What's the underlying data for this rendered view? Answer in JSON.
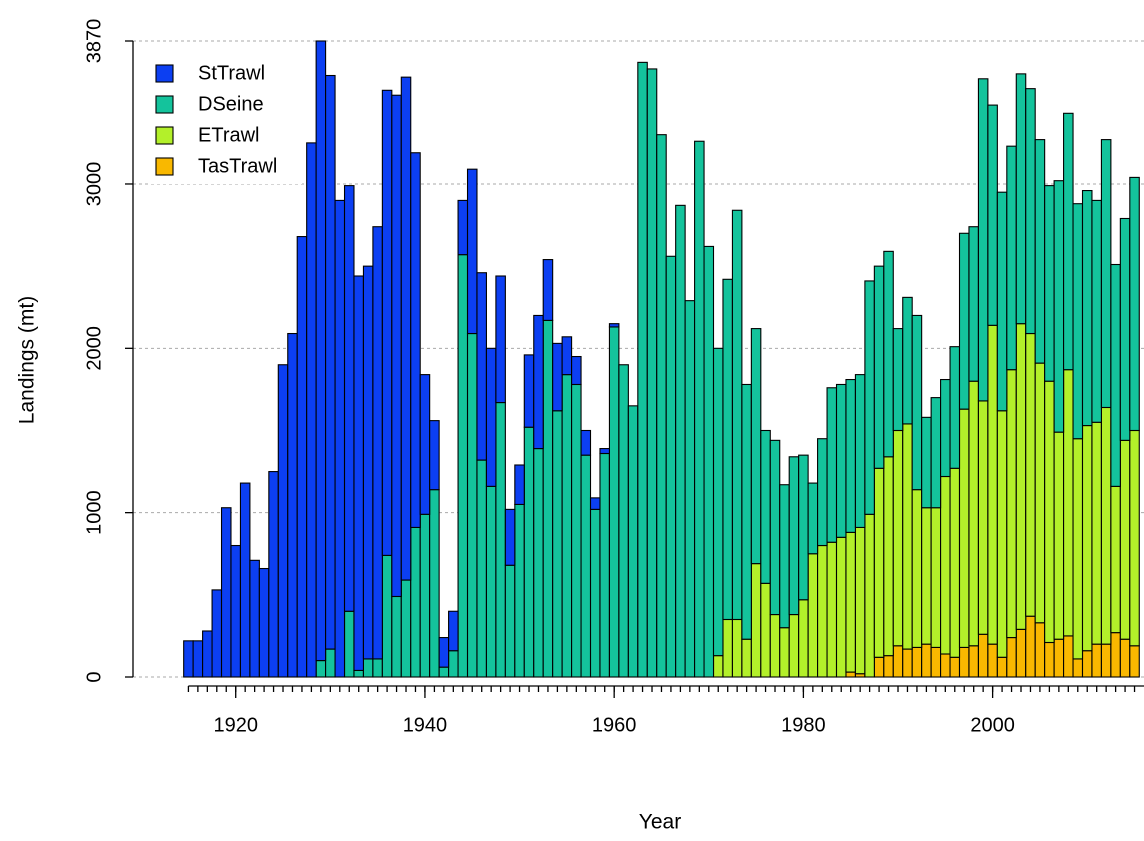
{
  "chart_data": {
    "type": "stacked-bar",
    "xlabel": "Year",
    "ylabel": "Landings (mt)",
    "x": [
      1915,
      1916,
      1917,
      1918,
      1919,
      1920,
      1921,
      1922,
      1923,
      1924,
      1925,
      1926,
      1927,
      1928,
      1929,
      1930,
      1931,
      1932,
      1933,
      1934,
      1935,
      1936,
      1937,
      1938,
      1939,
      1940,
      1941,
      1942,
      1943,
      1944,
      1945,
      1946,
      1947,
      1948,
      1949,
      1950,
      1951,
      1952,
      1953,
      1954,
      1955,
      1956,
      1957,
      1958,
      1959,
      1960,
      1961,
      1962,
      1963,
      1964,
      1965,
      1966,
      1967,
      1968,
      1969,
      1970,
      1971,
      1972,
      1973,
      1974,
      1975,
      1976,
      1977,
      1978,
      1979,
      1980,
      1981,
      1982,
      1983,
      1984,
      1985,
      1986,
      1987,
      1988,
      1989,
      1990,
      1991,
      1992,
      1993,
      1994,
      1995,
      1996,
      1997,
      1998,
      1999,
      2000,
      2001,
      2002,
      2003,
      2004,
      2005,
      2006,
      2007,
      2008,
      2009,
      2010,
      2011,
      2012,
      2013,
      2014,
      2015
    ],
    "series": [
      {
        "name": "TasTrawl",
        "color": "#f9b800",
        "values": [
          0,
          0,
          0,
          0,
          0,
          0,
          0,
          0,
          0,
          0,
          0,
          0,
          0,
          0,
          0,
          0,
          0,
          0,
          0,
          0,
          0,
          0,
          0,
          0,
          0,
          0,
          0,
          0,
          0,
          0,
          0,
          0,
          0,
          0,
          0,
          0,
          0,
          0,
          0,
          0,
          0,
          0,
          0,
          0,
          0,
          0,
          0,
          0,
          0,
          0,
          0,
          0,
          0,
          0,
          0,
          0,
          0,
          0,
          0,
          0,
          0,
          0,
          0,
          0,
          0,
          0,
          0,
          0,
          0,
          0,
          30,
          20,
          0,
          120,
          130,
          190,
          170,
          180,
          200,
          180,
          140,
          120,
          180,
          190,
          260,
          200,
          120,
          240,
          290,
          370,
          330,
          210,
          230,
          250,
          110,
          160,
          200,
          200,
          270,
          230,
          190
        ]
      },
      {
        "name": "ETrawl",
        "color": "#b3f02a",
        "values": [
          0,
          0,
          0,
          0,
          0,
          0,
          0,
          0,
          0,
          0,
          0,
          0,
          0,
          0,
          0,
          0,
          0,
          0,
          0,
          0,
          0,
          0,
          0,
          0,
          0,
          0,
          0,
          0,
          0,
          0,
          0,
          0,
          0,
          0,
          0,
          0,
          0,
          0,
          0,
          0,
          0,
          0,
          0,
          0,
          0,
          0,
          0,
          0,
          0,
          0,
          0,
          0,
          0,
          0,
          0,
          0,
          130,
          350,
          350,
          230,
          690,
          570,
          380,
          300,
          380,
          470,
          750,
          800,
          820,
          850,
          850,
          890,
          990,
          1150,
          1210,
          1310,
          1370,
          960,
          830,
          850,
          1080,
          1150,
          1450,
          1610,
          1420,
          1940,
          1500,
          1630,
          1860,
          1720,
          1580,
          1590,
          1260,
          1620,
          1340,
          1370,
          1350,
          1440,
          890,
          1210,
          1310
        ]
      },
      {
        "name": "DSeine",
        "color": "#14c39c",
        "values": [
          0,
          0,
          0,
          0,
          0,
          0,
          0,
          0,
          0,
          0,
          0,
          0,
          0,
          0,
          100,
          170,
          0,
          400,
          40,
          110,
          110,
          740,
          490,
          590,
          910,
          990,
          1140,
          60,
          160,
          2570,
          2090,
          1320,
          1160,
          1670,
          680,
          1050,
          1520,
          1390,
          2170,
          1620,
          1840,
          1780,
          1350,
          1020,
          1360,
          2130,
          1900,
          1650,
          3740,
          3700,
          3300,
          2560,
          2870,
          2290,
          3260,
          2620,
          1870,
          2070,
          2490,
          1550,
          1430,
          930,
          1060,
          870,
          960,
          880,
          430,
          650,
          940,
          930,
          930,
          930,
          1420,
          1230,
          1250,
          620,
          770,
          1060,
          550,
          670,
          590,
          740,
          1070,
          940,
          1960,
          1340,
          1330,
          1360,
          1520,
          1490,
          1360,
          1190,
          1530,
          1560,
          1430,
          1430,
          1350,
          1630,
          1350,
          1350,
          1540
        ]
      },
      {
        "name": "StTrawl",
        "color": "#0c3ff2",
        "values": [
          220,
          220,
          280,
          530,
          1030,
          800,
          1180,
          710,
          660,
          1250,
          1900,
          2090,
          2680,
          3250,
          3770,
          3490,
          2900,
          2590,
          2400,
          2390,
          2630,
          2830,
          3050,
          3060,
          2280,
          850,
          420,
          180,
          240,
          330,
          1000,
          1140,
          840,
          770,
          340,
          240,
          440,
          810,
          370,
          410,
          230,
          170,
          150,
          70,
          30,
          20,
          0,
          0,
          0,
          0,
          0,
          0,
          0,
          0,
          0,
          0,
          0,
          0,
          0,
          0,
          0,
          0,
          0,
          0,
          0,
          0,
          0,
          0,
          0,
          0,
          0,
          0,
          0,
          0,
          0,
          0,
          0,
          0,
          0,
          0,
          0,
          0,
          0,
          0,
          0,
          0,
          0,
          0,
          0,
          0,
          0,
          0,
          0,
          0,
          0,
          0,
          0,
          0,
          0,
          0,
          0
        ]
      }
    ],
    "legend_order": [
      "StTrawl",
      "DSeine",
      "ETrawl",
      "TasTrawl"
    ],
    "legend": "top-left",
    "xlim": [
      1913.9,
      2016
    ],
    "xticks": [
      1920,
      1940,
      1960,
      1980,
      2000
    ],
    "ylim": [
      0,
      3870
    ],
    "yticks": [
      0,
      1000,
      2000,
      3000,
      3870
    ],
    "grid": true
  }
}
